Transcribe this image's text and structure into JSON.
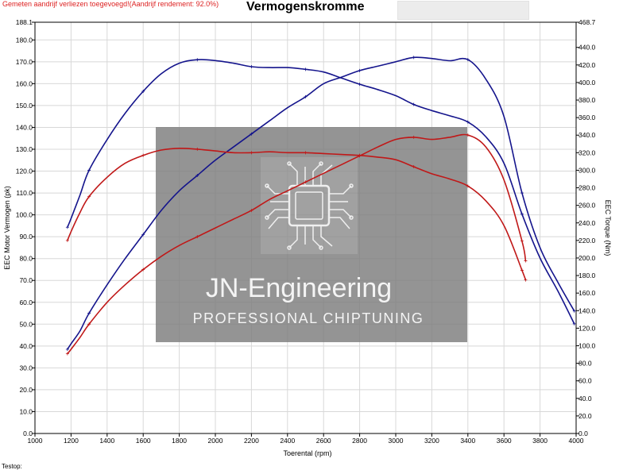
{
  "header": {
    "note": "Gemeten aandrijf verliezen toegevoegd!(Aandrijf rendement: 92.0%)",
    "title": "Vermogenskromme"
  },
  "footer": {
    "label": "Testop:"
  },
  "watermark": {
    "brand": "JN-Engineering",
    "tagline": "PROFESSIONAL CHIPTUNING",
    "logo_icon": "circuit-chip-icon"
  },
  "colors": {
    "blue": "#14148c",
    "red": "#c01818",
    "grid": "#d8d8d8",
    "watermark": "#7c7c7c"
  },
  "chart_data": {
    "type": "line",
    "title": "Vermogenskromme",
    "xlabel": "Toerental (rpm)",
    "ylabel_left": "EEC Motor Vermogen (pk)",
    "ylabel_right": "EEC Torque (Nm)",
    "xlim": [
      1000,
      4000
    ],
    "ylim_left": [
      0.0,
      188.1
    ],
    "ylim_right": [
      0.0,
      468.7
    ],
    "x_ticks": [
      "1000",
      "1200",
      "1400",
      "1600",
      "1800",
      "2000",
      "2200",
      "2400",
      "2600",
      "2800",
      "3000",
      "3200",
      "3400",
      "3600",
      "3800",
      "4000"
    ],
    "y_ticks_left": [
      "0.0",
      "10.0",
      "20.0",
      "30.0",
      "40.0",
      "50.0",
      "60.0",
      "70.0",
      "80.0",
      "90.0",
      "100.0",
      "110.0",
      "120.0",
      "130.0",
      "140.0",
      "150.0",
      "160.0",
      "170.0",
      "180.0",
      "188.1"
    ],
    "y_ticks_right": [
      "0.0",
      "20.0",
      "40.0",
      "60.0",
      "80.0",
      "100.0",
      "120.0",
      "140.0",
      "160.0",
      "180.0",
      "200.0",
      "220.0",
      "240.0",
      "260.0",
      "280.0",
      "300.0",
      "320.0",
      "340.0",
      "360.0",
      "380.0",
      "400.0",
      "420.0",
      "440.0",
      "468.7"
    ],
    "grid": true,
    "series": [
      {
        "color": "#14148c",
        "axis": "left",
        "x": [
          1180,
          1200,
          1250,
          1300,
          1400,
          1500,
          1600,
          1700,
          1800,
          1900,
          2000,
          2100,
          2200,
          2300,
          2400,
          2500,
          2600,
          2700,
          2800,
          2900,
          3000,
          3100,
          3200,
          3300,
          3400,
          3500,
          3600,
          3700,
          3800,
          3900,
          3990
        ],
        "y": [
          38.5,
          41.0,
          47.0,
          55.0,
          68.0,
          80.0,
          91.0,
          102.0,
          111.0,
          118.0,
          125.0,
          131.0,
          137.0,
          143.0,
          149.0,
          154.0,
          160.0,
          163.0,
          166.0,
          168.0,
          170.0,
          172.0,
          171.5,
          170.5,
          171.0,
          162.0,
          145.0,
          110.0,
          85.0,
          69.0,
          56.0
        ]
      },
      {
        "color": "#14148c",
        "axis": "right",
        "x": [
          1180,
          1200,
          1250,
          1300,
          1400,
          1500,
          1600,
          1700,
          1800,
          1900,
          2000,
          2100,
          2200,
          2300,
          2400,
          2500,
          2600,
          2700,
          2800,
          2900,
          3000,
          3100,
          3200,
          3300,
          3400,
          3500,
          3600,
          3700,
          3800,
          3900,
          3990
        ],
        "y": [
          235,
          245,
          272,
          300,
          335,
          365,
          390,
          410,
          422,
          426,
          425,
          422,
          418,
          417,
          417,
          415,
          412,
          405,
          398,
          392,
          385,
          375,
          368,
          362,
          355,
          338,
          308,
          250,
          200,
          162,
          125
        ]
      },
      {
        "color": "#c01818",
        "axis": "left",
        "x": [
          1180,
          1200,
          1250,
          1300,
          1400,
          1500,
          1600,
          1700,
          1800,
          1900,
          2000,
          2100,
          2200,
          2300,
          2400,
          2500,
          2600,
          2700,
          2800,
          2900,
          3000,
          3100,
          3200,
          3300,
          3400,
          3500,
          3600,
          3700,
          3720
        ],
        "y": [
          36.5,
          38.5,
          44.0,
          50.0,
          60.0,
          68.0,
          75.0,
          81.0,
          86.0,
          90.0,
          94.0,
          98.0,
          102.0,
          107.0,
          111.0,
          115.0,
          119.0,
          123.0,
          127.0,
          131.0,
          134.5,
          135.5,
          134.5,
          135.5,
          136.5,
          131.0,
          116.0,
          88.0,
          79.0
        ]
      },
      {
        "color": "#c01818",
        "axis": "right",
        "x": [
          1180,
          1200,
          1250,
          1300,
          1400,
          1500,
          1600,
          1700,
          1800,
          1900,
          2000,
          2100,
          2200,
          2300,
          2400,
          2500,
          2600,
          2700,
          2800,
          2900,
          3000,
          3100,
          3200,
          3300,
          3400,
          3500,
          3600,
          3700,
          3720
        ],
        "y": [
          220,
          230,
          252,
          270,
          292,
          308,
          317,
          323,
          325,
          324,
          322,
          320,
          320,
          321,
          320,
          320,
          319,
          318,
          317,
          315,
          312,
          304,
          296,
          290,
          282,
          265,
          237,
          186,
          175
        ]
      }
    ]
  }
}
